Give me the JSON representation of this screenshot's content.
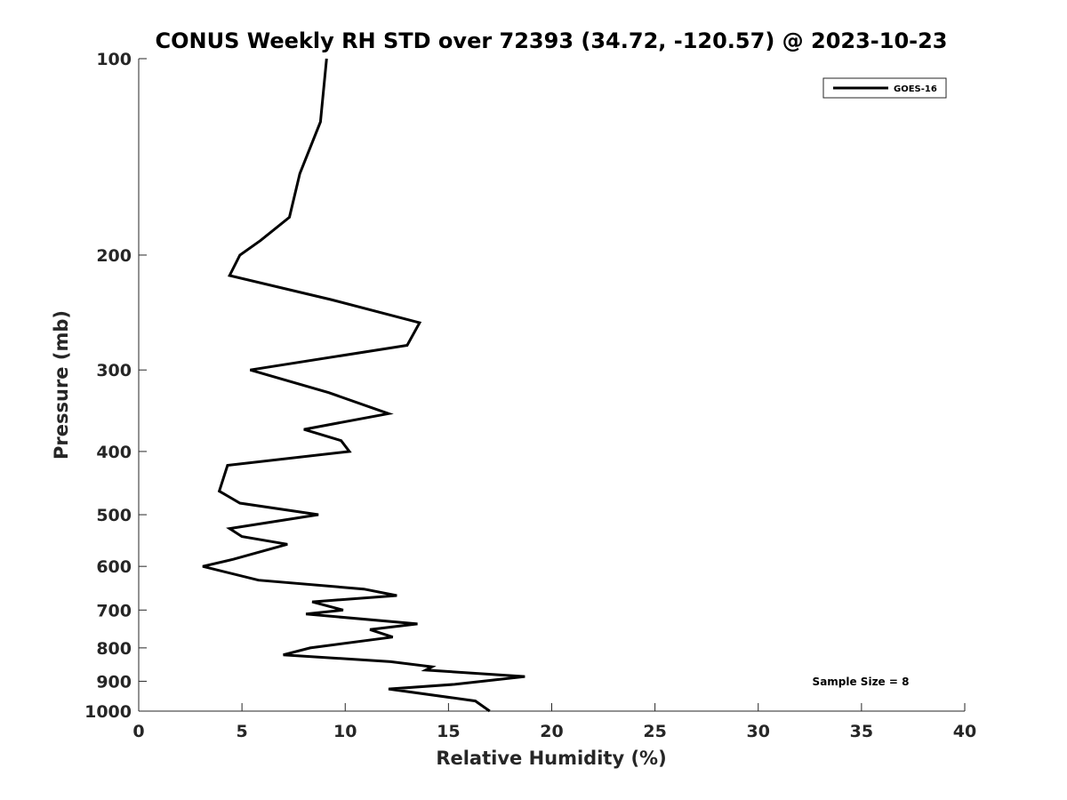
{
  "chart_data": {
    "type": "line",
    "title": "CONUS Weekly RH STD over 72393 (34.72, -120.57) @ 2023-10-23",
    "xlabel": "Relative Humidity (%)",
    "ylabel": "Pressure (mb)",
    "xlim": [
      0,
      40
    ],
    "ylim": [
      100,
      1000
    ],
    "yscale": "log",
    "yreversed": true,
    "grid": false,
    "legend_position": "top-right",
    "x_ticks": [
      "0",
      "5",
      "10",
      "15",
      "20",
      "25",
      "30",
      "35",
      "40"
    ],
    "y_ticks": [
      "100",
      "200",
      "300",
      "400",
      "500",
      "600",
      "700",
      "800",
      "900",
      "1000"
    ],
    "annotation": "Sample Size = 8",
    "series": [
      {
        "name": "GOES-16",
        "color": "#000000",
        "points": [
          [
            9.1,
            100
          ],
          [
            8.8,
            125
          ],
          [
            7.8,
            150
          ],
          [
            7.3,
            175
          ],
          [
            5.9,
            190
          ],
          [
            4.9,
            200
          ],
          [
            4.4,
            215
          ],
          [
            9.3,
            234
          ],
          [
            13.6,
            254
          ],
          [
            13.0,
            275
          ],
          [
            5.4,
            300
          ],
          [
            9.2,
            325
          ],
          [
            12.1,
            350
          ],
          [
            8.0,
            370
          ],
          [
            9.8,
            385
          ],
          [
            10.2,
            400
          ],
          [
            4.3,
            420
          ],
          [
            3.9,
            460
          ],
          [
            4.9,
            480
          ],
          [
            8.7,
            500
          ],
          [
            4.4,
            525
          ],
          [
            5.0,
            540
          ],
          [
            7.2,
            555
          ],
          [
            4.6,
            585
          ],
          [
            3.1,
            600
          ],
          [
            5.8,
            630
          ],
          [
            10.9,
            650
          ],
          [
            12.5,
            665
          ],
          [
            8.4,
            680
          ],
          [
            9.9,
            700
          ],
          [
            8.1,
            710
          ],
          [
            13.5,
            735
          ],
          [
            11.2,
            750
          ],
          [
            12.3,
            770
          ],
          [
            8.3,
            800
          ],
          [
            7.0,
            820
          ],
          [
            12.2,
            840
          ],
          [
            14.2,
            855
          ],
          [
            13.9,
            865
          ],
          [
            18.7,
            885
          ],
          [
            15.3,
            910
          ],
          [
            12.1,
            925
          ],
          [
            16.3,
            965
          ],
          [
            17.0,
            1000
          ]
        ]
      }
    ]
  }
}
